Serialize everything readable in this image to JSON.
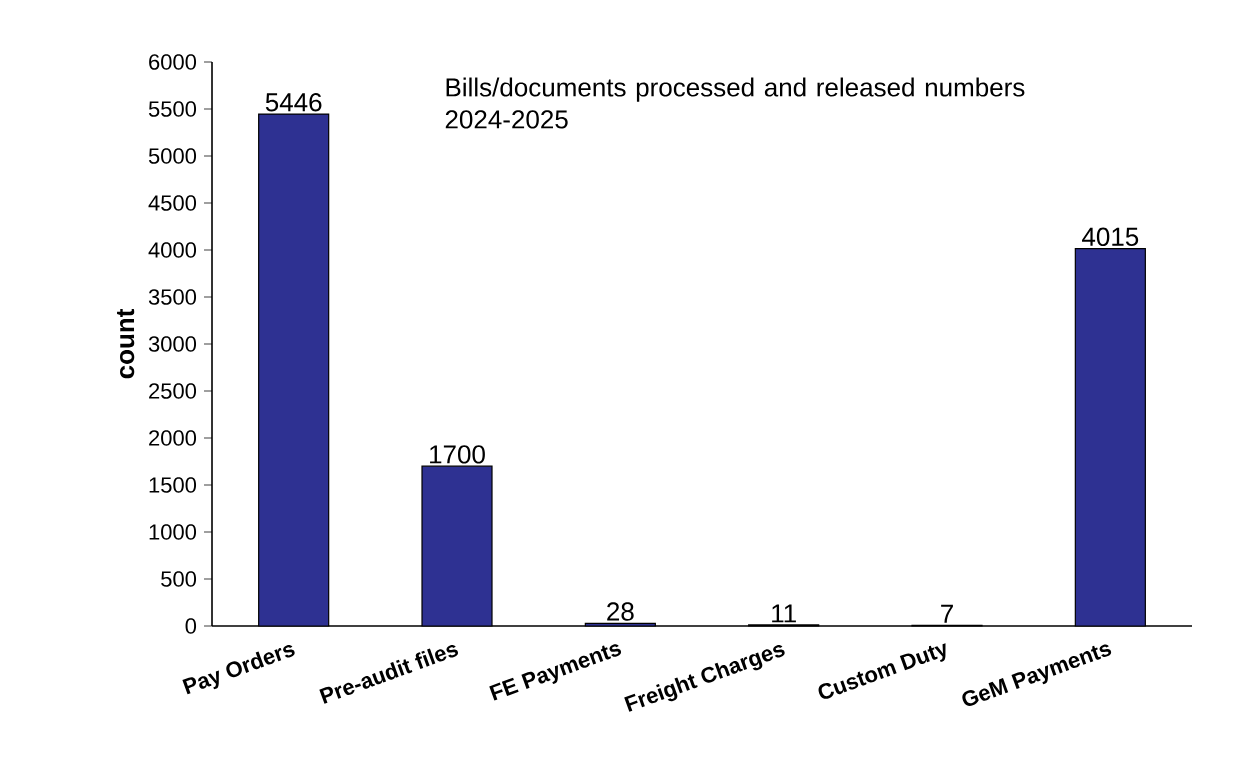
{
  "chart_data": {
    "type": "bar",
    "title": "Bills/documents processed and released numbers 2024-2025",
    "ylabel": "count",
    "categories": [
      "Pay Orders",
      "Pre-audit files",
      "FE Payments",
      "Freight Charges",
      "Custom Duty",
      "GeM Payments"
    ],
    "values": [
      5446,
      1700,
      28,
      11,
      7,
      4015
    ],
    "color": "#2e3192",
    "ylim": [
      0,
      6000
    ],
    "yticks": [
      0,
      500,
      1000,
      1500,
      2000,
      2500,
      3000,
      3500,
      4000,
      4500,
      5000,
      5500,
      6000
    ],
    "data_labels": true,
    "grid": false
  }
}
